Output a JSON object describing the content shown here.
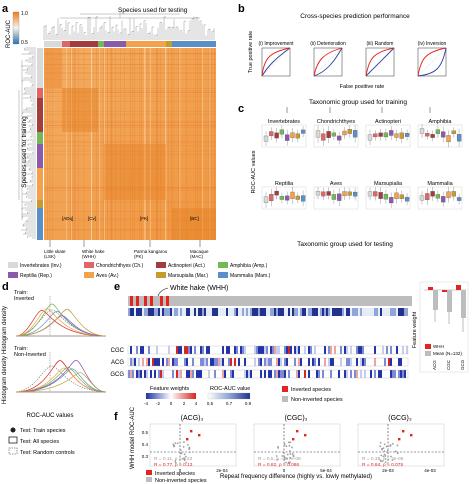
{
  "panels": {
    "a": {
      "letter": "a",
      "cbar_title": "ROC-AUC",
      "cbar_ticks": [
        "1.0",
        "0.5"
      ],
      "top_label": "Species used for testing",
      "left_label": "Species used for training",
      "cell_labels": [
        "[ADq]",
        "[Cv]",
        "[FK]",
        "[BC]"
      ],
      "species_names": [
        "Little skate\n(LSK)",
        "White hake\n(WHH)",
        "Parma kangaroo\n(PK)",
        "Macaque\n(MAC)"
      ],
      "legend": [
        {
          "label": "Invertebrates (Inv.)",
          "color": "#d9d9d9"
        },
        {
          "label": "Chondrichthyes (Ch.)",
          "color": "#e06666"
        },
        {
          "label": "Actinopteri (Act.)",
          "color": "#a33d3d"
        },
        {
          "label": "Amphibia (Amp.)",
          "color": "#74b85a"
        },
        {
          "label": "Reptilia (Rep.)",
          "color": "#8b5aa8"
        },
        {
          "label": "Aves (Av.)",
          "color": "#f5a04a"
        },
        {
          "label": "Marsupialia (Mar.)",
          "color": "#c79a2f"
        },
        {
          "label": "Mammalia (Mam.)",
          "color": "#5a8fc7"
        }
      ]
    },
    "b": {
      "letter": "b",
      "title": "Cross-species prediction performance",
      "subplots": [
        "(i) Improvement",
        "(ii) Deterioration",
        "(iii) Random",
        "(iv) Inversion"
      ],
      "ylabel": "True positive rate",
      "xlabel": "False positive rate"
    },
    "c": {
      "letter": "c",
      "top_label": "Taxonomic group used for training",
      "ylabel": "ROC-AUC values",
      "xlabel": "Taxonomic group used for testing",
      "groups_top": [
        "Invertebrates",
        "Chondrichthyes",
        "Actinopteri",
        "Amphibia"
      ],
      "groups_bottom": [
        "Reptilia",
        "Aves",
        "Marsupialia",
        "Mammalia"
      ]
    },
    "d": {
      "letter": "d",
      "ylabel": "Histogram density",
      "xlabel": "ROC-AUC values",
      "top_title": "Train:\nInverted",
      "bottom_title": "Train:\nNon-Inverted",
      "legend": [
        "Test: Train species",
        "Test: All species",
        "Test: Random controls"
      ]
    },
    "e": {
      "letter": "e",
      "callout": "White hake (WHH)",
      "rows": [
        "CGC",
        "ACG",
        "GCG"
      ],
      "fw_title": "Feature weights",
      "fw_ticks": [
        "-4",
        "-2",
        "0",
        "2",
        "4"
      ],
      "auc_title": "ROC-AUC value",
      "auc_ticks": [
        "0.5",
        "0.7",
        "0.9"
      ],
      "legend": [
        {
          "label": "Inverted species",
          "color": "#e0261f"
        },
        {
          "label": "Non-inverted species",
          "color": "#bdbdbd"
        }
      ],
      "bar_ylabel": "Feature weight",
      "bar_legend": [
        "WHH",
        "Mean (N=132)"
      ],
      "bar_categories": [
        "ACG",
        "CGC",
        "GCG"
      ]
    },
    "f": {
      "letter": "f",
      "ylabel": "WHH model ROC-AUC",
      "xlabel": "Repeat frequency difference (highly vs. lowly methylated)",
      "y_ticks": [
        "0.5",
        "0.4",
        "0.3"
      ],
      "subplots": [
        {
          "title": "(ACG)₃",
          "stat_grey": "R = 0.11, ρ = 0.23",
          "stat_red": "R = 0.77, ρ = 0.13",
          "x_ticks": [
            "0",
            "2e-04"
          ]
        },
        {
          "title": "(CGC)₃",
          "stat_grey": "R = 0.5, ρ = 2.7e-09",
          "stat_red": "R = 0.82, ρ = 0.086",
          "x_ticks": [
            "0",
            "5e-04"
          ]
        },
        {
          "title": "(GCG)₃",
          "stat_grey": "R = 0.39, ρ = 3e-06",
          "stat_red": "R = 0.84, ρ = 0.075",
          "x_ticks": [
            "2e-03",
            "4e-03"
          ]
        }
      ],
      "legend": [
        {
          "label": "Inverted species",
          "color": "#e0261f"
        },
        {
          "label": "Non-inverted species",
          "color": "#bdbdbd"
        }
      ]
    }
  },
  "colors": {
    "heat_low": "#2c6fb0",
    "heat_mid": "#f7f3ea",
    "heat_high": "#e87d1d",
    "red": "#e0261f",
    "blue_roc": "#2a3f9e",
    "grey": "#9e9e9e"
  }
}
